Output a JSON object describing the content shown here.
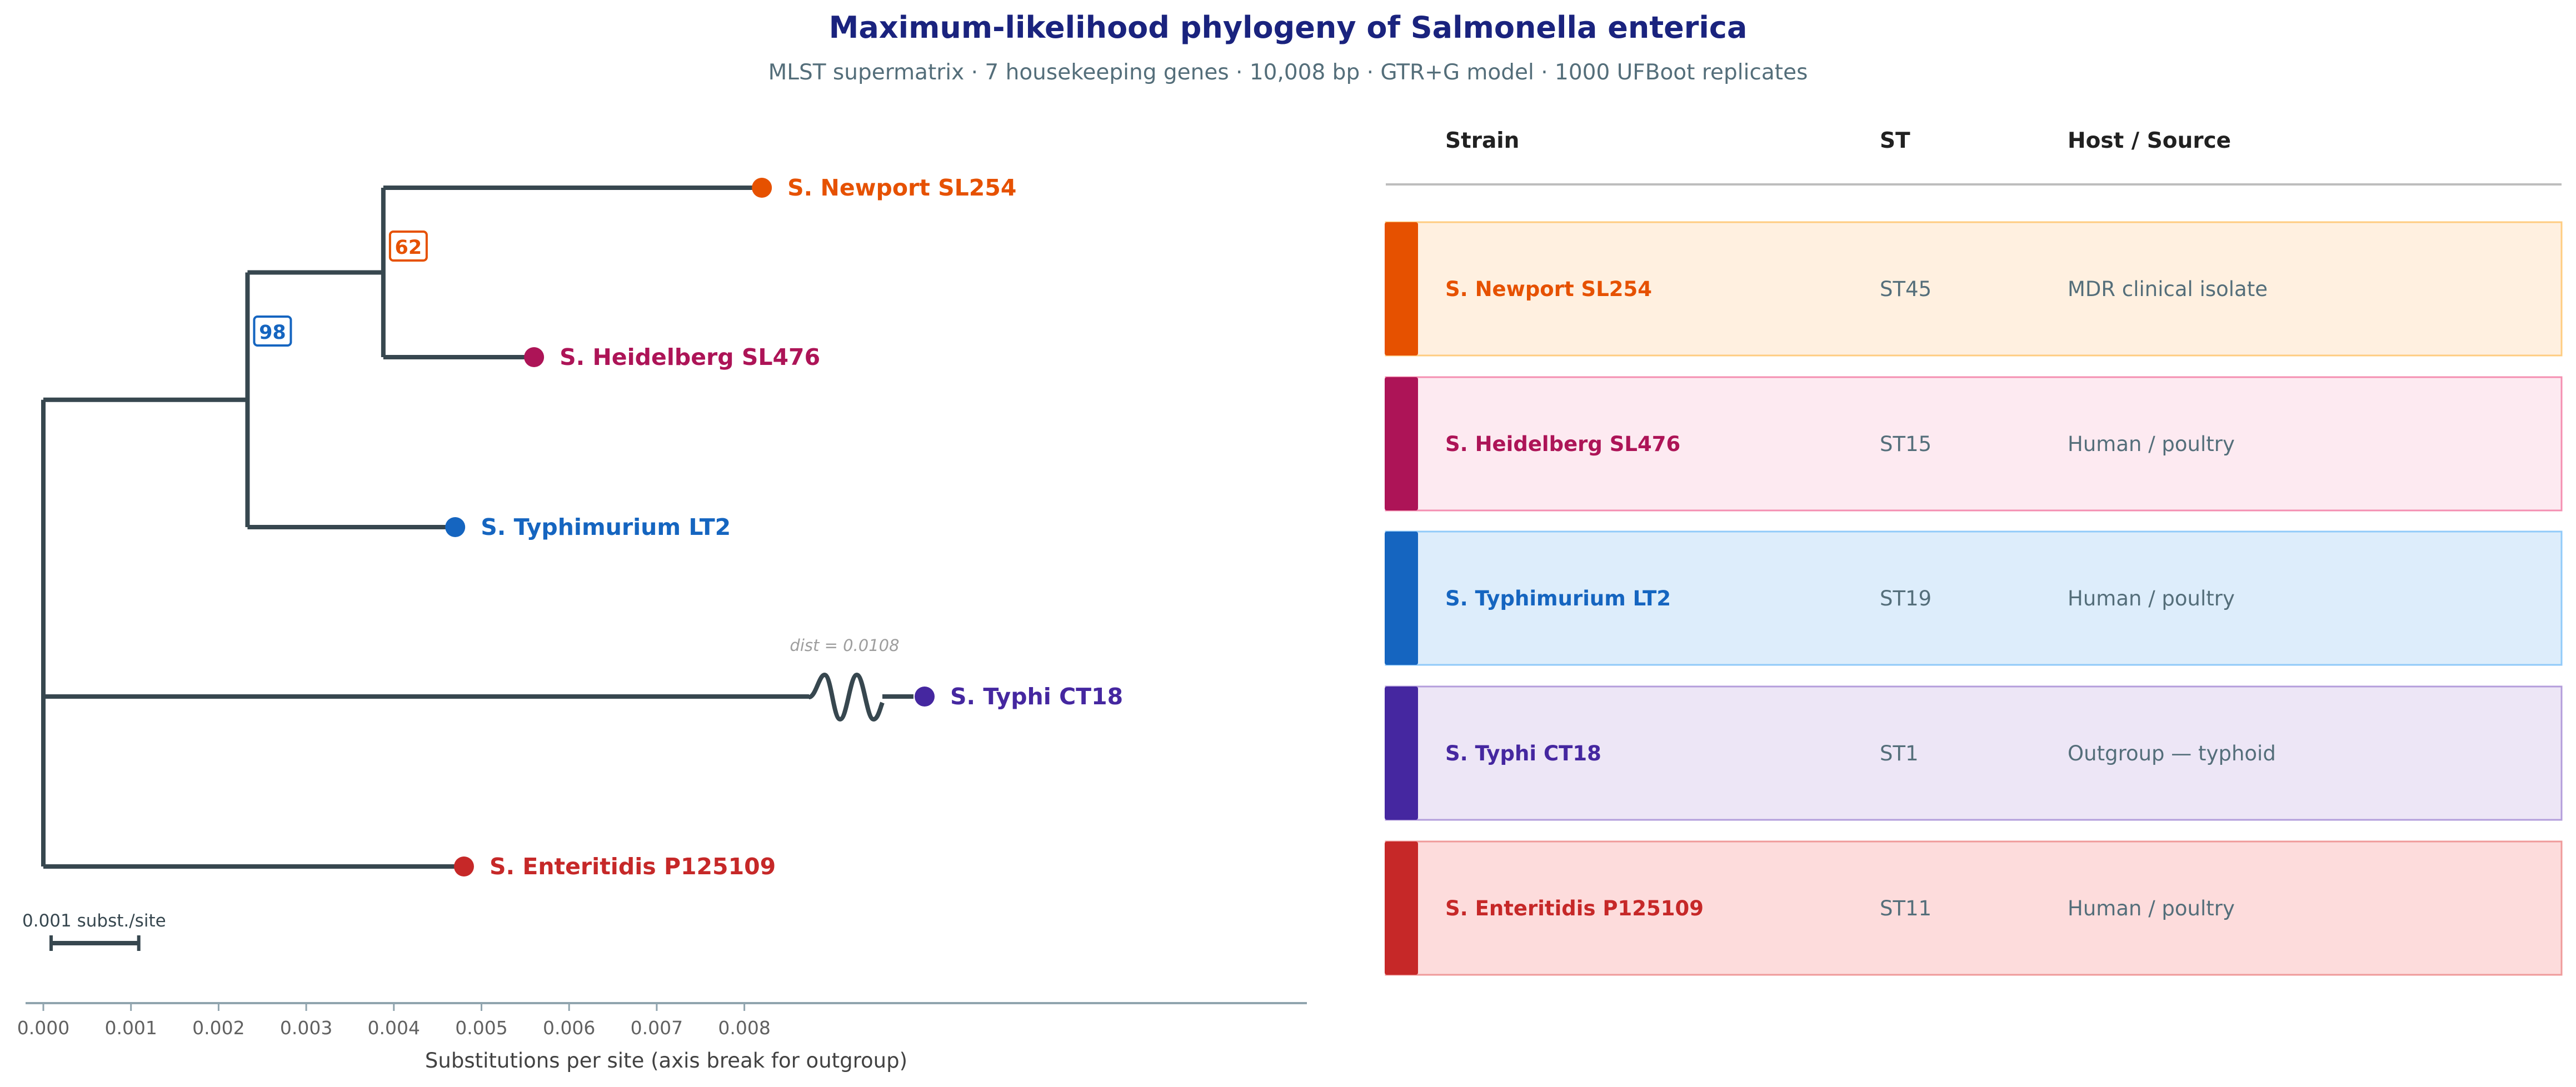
{
  "header": {
    "title": "Maximum-likelihood phylogeny of Salmonella enterica",
    "subtitle": "MLST supermatrix  ·  7 housekeeping genes  ·  10,008 bp  ·  GTR+G model  ·  1000 UFBoot replicates"
  },
  "tree": {
    "tips": [
      {
        "label": "S. Newport SL254",
        "branch_end": 0.0082,
        "color": "#e65100"
      },
      {
        "label": "S. Heidelberg SL476",
        "branch_end": 0.0056,
        "color": "#ad1457"
      },
      {
        "label": "S. Typhimurium LT2",
        "branch_end": 0.0047,
        "color": "#1565c0"
      },
      {
        "label": "S. Typhi CT18",
        "branch_end": 0.0108,
        "color": "#4527a0"
      },
      {
        "label": "S. Enteritidis P125109",
        "branch_end": 0.0048,
        "color": "#c62828"
      }
    ],
    "internal_nodes": [
      {
        "name": "root",
        "x": 0.0
      },
      {
        "name": "n98",
        "x": 0.00233,
        "support": "98",
        "color": "#1565c0"
      },
      {
        "name": "n62",
        "x": 0.00388,
        "support": "62",
        "color": "#e65100"
      }
    ],
    "axis_break_note": "dist = 0.0108",
    "scale_bar_label": "0.001 subst./site",
    "scale_bar_length": 0.001
  },
  "axis": {
    "ticks": [
      "0.000",
      "0.001",
      "0.002",
      "0.003",
      "0.004",
      "0.005",
      "0.006",
      "0.007",
      "0.008"
    ],
    "xlabel": "Substitutions per site  (axis break for outgroup)"
  },
  "table": {
    "headers": {
      "strain": "Strain",
      "st": "ST",
      "host": "Host / Source"
    },
    "rows": [
      {
        "strain": "S. Newport SL254",
        "st": "ST45",
        "host": "MDR clinical isolate",
        "color": "#e65100",
        "bg": "#fff0e0",
        "border": "#ffcc80"
      },
      {
        "strain": "S. Heidelberg SL476",
        "st": "ST15",
        "host": "Human / poultry",
        "color": "#ad1457",
        "bg": "#fdeaf1",
        "border": "#f48fb1"
      },
      {
        "strain": "S. Typhimurium LT2",
        "st": "ST19",
        "host": "Human / poultry",
        "color": "#1565c0",
        "bg": "#ddedfb",
        "border": "#90caf9"
      },
      {
        "strain": "S. Typhi CT18",
        "st": "ST1",
        "host": "Outgroup — typhoid",
        "color": "#4527a0",
        "bg": "#ede6f6",
        "border": "#b39ddb"
      },
      {
        "strain": "S. Enteritidis P125109",
        "st": "ST11",
        "host": "Human / poultry",
        "color": "#c62828",
        "bg": "#fddcdc",
        "border": "#ef9a9a"
      }
    ]
  }
}
